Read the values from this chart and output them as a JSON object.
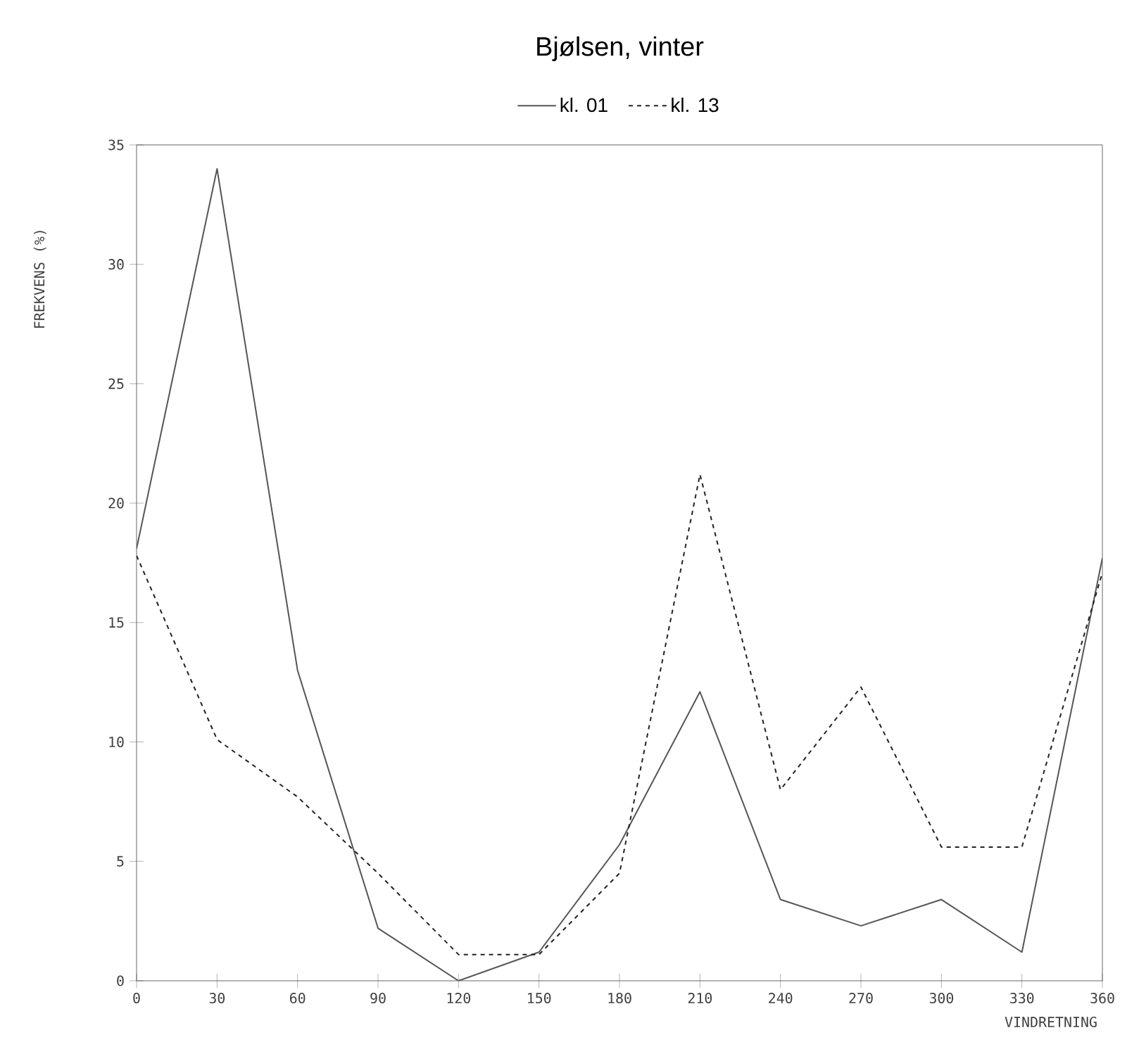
{
  "chart_data": {
    "type": "line",
    "title": "Bjølsen, vinter",
    "xlabel": "VINDRETNING",
    "ylabel": "FREKVENS (%)",
    "x": [
      0,
      30,
      60,
      90,
      120,
      150,
      180,
      210,
      240,
      270,
      300,
      330,
      360
    ],
    "series": [
      {
        "name": "kl. 01",
        "color": "#555555",
        "line_style": "solid",
        "values": [
          18.1,
          34.0,
          13.0,
          2.2,
          0,
          1.2,
          5.7,
          12.1,
          3.4,
          2.3,
          3.4,
          1.2,
          17.7
        ]
      },
      {
        "name": "kl. 13",
        "color": "#222222",
        "line_style": "dashed",
        "values": [
          17.8,
          10.1,
          7.7,
          4.5,
          1.1,
          1.1,
          4.5,
          21.2,
          8.0,
          12.3,
          5.6,
          5.6,
          17.1
        ]
      }
    ],
    "xlim": [
      0,
      360
    ],
    "xticks": [
      0,
      30,
      60,
      90,
      120,
      150,
      180,
      210,
      240,
      270,
      300,
      330,
      360
    ],
    "ylim": [
      0,
      35
    ],
    "yticks": [
      0,
      5,
      10,
      15,
      20,
      25,
      30,
      35
    ],
    "legend": "top",
    "grid": false,
    "marker": "none"
  }
}
